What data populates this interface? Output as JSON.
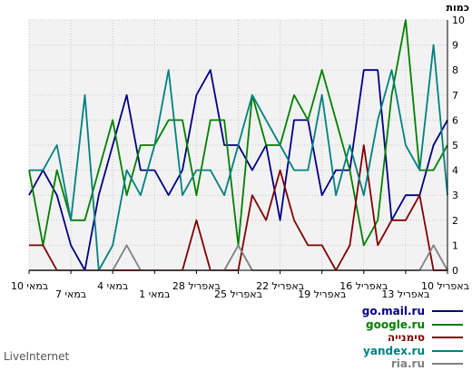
{
  "brand": "LiveInternet",
  "chart_data": {
    "type": "line",
    "y_unit_label": "כמות",
    "ylim": [
      0,
      10
    ],
    "y_ticks": [
      0,
      1,
      2,
      3,
      4,
      5,
      6,
      7,
      8,
      9,
      10
    ],
    "grid": true,
    "legend_position": "bottom-right",
    "x_labels_axis_order": [
      "10 במאי",
      "7 במאי",
      "4 במאי",
      "1 במאי",
      "28 באפריל",
      "25 באפריל",
      "22 באפריל",
      "19 באפריל",
      "16 באפריל",
      "13 באפריל",
      "10 באפריל"
    ],
    "series": [
      {
        "name": "go.mail.ru",
        "color": "#000080",
        "values": [
          3,
          4,
          3,
          1,
          0,
          3,
          5,
          7,
          4,
          4,
          3,
          4,
          7,
          8,
          5,
          5,
          4,
          5,
          2,
          6,
          6,
          3,
          4,
          4,
          8,
          8,
          2,
          3,
          3,
          5,
          6
        ]
      },
      {
        "name": "google.ru",
        "color": "#008000",
        "values": [
          4,
          1,
          4,
          2,
          2,
          4,
          6,
          3,
          5,
          5,
          6,
          6,
          3,
          6,
          6,
          1,
          7,
          5,
          5,
          7,
          6,
          8,
          6,
          4,
          1,
          2,
          7,
          10,
          4,
          4,
          5
        ]
      },
      {
        "name": "סימנייה",
        "color": "#800000",
        "values": [
          1,
          1,
          0,
          0,
          0,
          0,
          0,
          0,
          0,
          0,
          0,
          0,
          2,
          0,
          0,
          0,
          3,
          2,
          4,
          2,
          1,
          1,
          0,
          1,
          5,
          1,
          2,
          2,
          3,
          0,
          0
        ]
      },
      {
        "name": "yandex.ru",
        "color": "#008080",
        "values": [
          4,
          4,
          5,
          2,
          7,
          0,
          1,
          4,
          3,
          5,
          8,
          3,
          4,
          4,
          3,
          5,
          7,
          6,
          5,
          4,
          4,
          7,
          3,
          5,
          3,
          6,
          8,
          5,
          4,
          9,
          3
        ]
      },
      {
        "name": "ria.ru",
        "color": "#808080",
        "values": [
          0,
          0,
          0,
          0,
          0,
          0,
          0,
          1,
          0,
          0,
          0,
          0,
          0,
          0,
          0,
          1,
          0,
          0,
          0,
          0,
          0,
          0,
          0,
          0,
          0,
          0,
          0,
          0,
          0,
          1,
          0
        ]
      }
    ]
  }
}
